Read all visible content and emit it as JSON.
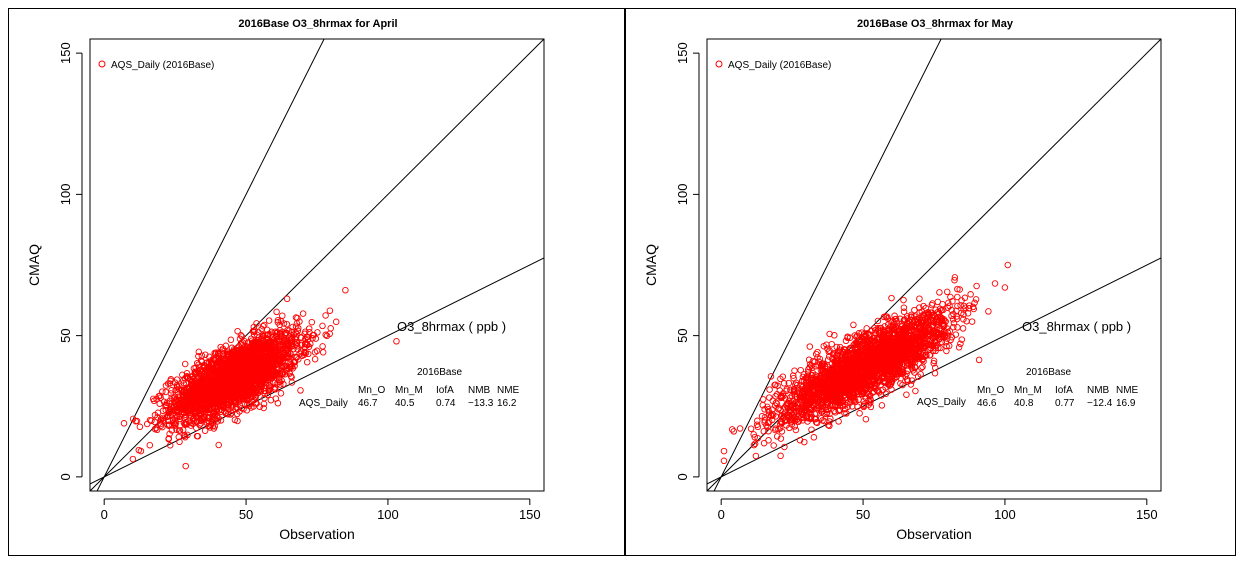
{
  "chart_data": [
    {
      "type": "scatter",
      "title": "2016Base O3_8hrmax for April",
      "xlabel": "Observation",
      "ylabel": "CMAQ",
      "xlim": [
        -5,
        155
      ],
      "ylim": [
        -5,
        155
      ],
      "xticks": [
        "0",
        "50",
        "100",
        "150"
      ],
      "yticks": [
        "0",
        "50",
        "100",
        "150"
      ],
      "reference_line_slopes": [
        2,
        1,
        0.5
      ],
      "marker_color": "#ff0000",
      "legend": {
        "position": "top-left",
        "label": "AQS_Daily (2016Base)"
      },
      "series": [
        {
          "name": "AQS_Daily (2016Base)",
          "cloud": {
            "x_range": [
              7,
              85
            ],
            "center_slope": 0.78,
            "note_outlier": [
              103,
              48
            ]
          }
        }
      ],
      "annotation": {
        "variable": "O3_8hrmax  ( ppb )",
        "run": "2016Base",
        "headers": [
          "Mn_O",
          "Mn_M",
          "IofA",
          "NMB",
          "NME"
        ],
        "row_label": "AQS_Daily",
        "values": [
          "46.7",
          "40.5",
          "0.74",
          "−13.3",
          "16.2"
        ]
      }
    },
    {
      "type": "scatter",
      "title": "2016Base O3_8hrmax for May",
      "xlabel": "Observation",
      "ylabel": "CMAQ",
      "xlim": [
        -5,
        155
      ],
      "ylim": [
        -5,
        155
      ],
      "xticks": [
        "0",
        "50",
        "100",
        "150"
      ],
      "yticks": [
        "0",
        "50",
        "100",
        "150"
      ],
      "reference_line_slopes": [
        2,
        1,
        0.5
      ],
      "marker_color": "#ff0000",
      "legend": {
        "position": "top-left",
        "label": "AQS_Daily (2016Base)"
      },
      "series": [
        {
          "name": "AQS_Daily (2016Base)",
          "cloud": {
            "x_range": [
              1,
              100
            ],
            "center_slope": 0.83,
            "note_outlier": [
              101,
              75
            ]
          }
        }
      ],
      "annotation": {
        "variable": "O3_8hrmax  ( ppb )",
        "run": "2016Base",
        "headers": [
          "Mn_O",
          "Mn_M",
          "IofA",
          "NMB",
          "NME"
        ],
        "row_label": "AQS_Daily",
        "values": [
          "46.6",
          "40.8",
          "0.77",
          "−12.4",
          "16.9"
        ]
      }
    }
  ]
}
